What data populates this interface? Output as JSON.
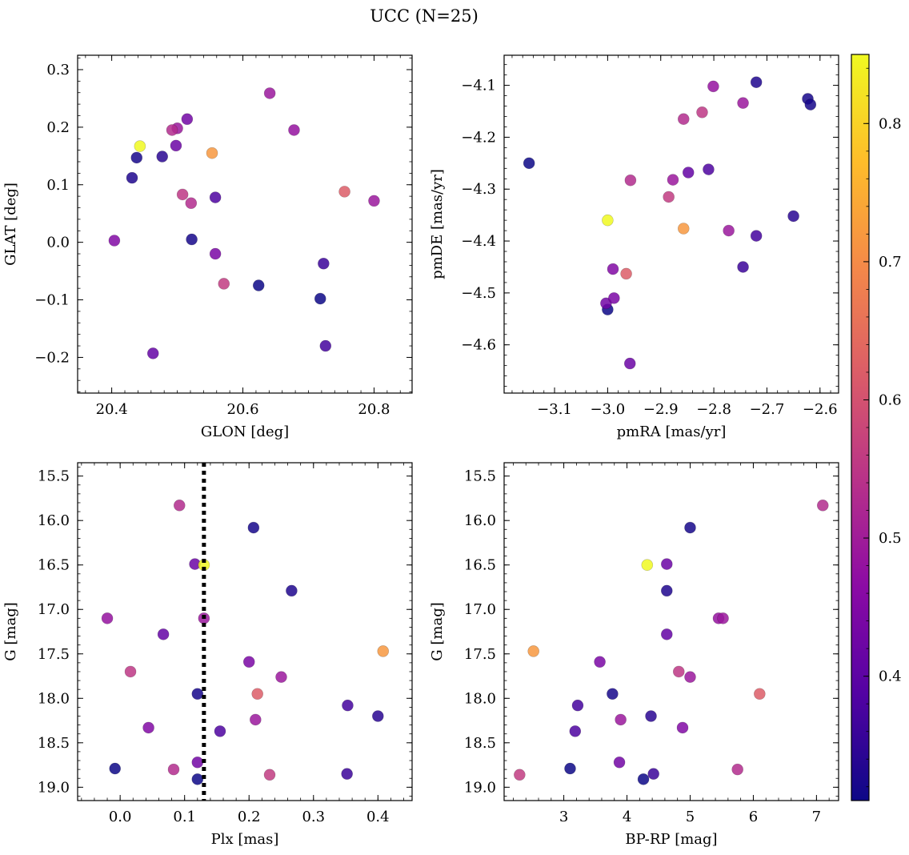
{
  "chart_data": {
    "title": "UCC (N=25)",
    "type": "scatter",
    "colorbar": {
      "colormap": "plasma",
      "range": [
        0.31,
        0.85
      ],
      "ticks": [
        0.4,
        0.5,
        0.6,
        0.7,
        0.8
      ],
      "tick_labels": [
        "0.4",
        "0.5",
        "0.6",
        "0.7",
        "0.8"
      ]
    },
    "points": [
      {
        "glon": 20.443,
        "glat": 0.167,
        "pmra": -3.0,
        "pmde": -4.36,
        "plx": 0.13,
        "g": 16.5,
        "bprp": 4.32,
        "c": 0.85
      },
      {
        "glon": 20.553,
        "glat": 0.155,
        "pmra": -2.857,
        "pmde": -4.376,
        "plx": 0.408,
        "g": 17.47,
        "bprp": 2.52,
        "c": 0.72
      },
      {
        "glon": 20.755,
        "glat": 0.088,
        "pmra": -2.965,
        "pmde": -4.463,
        "plx": 0.213,
        "g": 17.95,
        "bprp": 6.1,
        "c": 0.62
      },
      {
        "glon": 20.492,
        "glat": 0.195,
        "pmra": -2.957,
        "pmde": -4.283,
        "plx": 0.092,
        "g": 15.83,
        "bprp": 7.1,
        "c": 0.53
      },
      {
        "glon": 20.571,
        "glat": -0.072,
        "pmra": -2.885,
        "pmde": -4.315,
        "plx": 0.232,
        "g": 18.86,
        "bprp": 2.3,
        "c": 0.56
      },
      {
        "glon": 20.508,
        "glat": 0.083,
        "pmra": -2.822,
        "pmde": -4.152,
        "plx": 0.016,
        "g": 17.7,
        "bprp": 4.82,
        "c": 0.55
      },
      {
        "glon": 20.521,
        "glat": 0.068,
        "pmra": -2.857,
        "pmde": -4.165,
        "plx": 0.083,
        "g": 18.8,
        "bprp": 5.75,
        "c": 0.53
      },
      {
        "glon": 20.641,
        "glat": 0.259,
        "pmra": -2.745,
        "pmde": -4.134,
        "plx": 0.13,
        "g": 17.1,
        "bprp": 5.52,
        "c": 0.49
      },
      {
        "glon": 20.678,
        "glat": 0.195,
        "pmra": -2.801,
        "pmde": -4.102,
        "plx": -0.02,
        "g": 17.1,
        "bprp": 5.45,
        "c": 0.48
      },
      {
        "glon": 20.5,
        "glat": 0.198,
        "pmra": -2.877,
        "pmde": -4.282,
        "plx": 0.21,
        "g": 18.24,
        "bprp": 3.9,
        "c": 0.49
      },
      {
        "glon": 20.8,
        "glat": 0.072,
        "pmra": -2.772,
        "pmde": -4.38,
        "plx": 0.25,
        "g": 17.76,
        "bprp": 5.0,
        "c": 0.49
      },
      {
        "glon": 20.404,
        "glat": 0.003,
        "pmra": -2.99,
        "pmde": -4.454,
        "plx": 0.044,
        "g": 18.33,
        "bprp": 4.88,
        "c": 0.45
      },
      {
        "glon": 20.558,
        "glat": -0.02,
        "pmra": -2.988,
        "pmde": -4.51,
        "plx": 0.2,
        "g": 17.59,
        "bprp": 3.57,
        "c": 0.44
      },
      {
        "glon": 20.515,
        "glat": 0.214,
        "pmra": -3.003,
        "pmde": -4.52,
        "plx": 0.12,
        "g": 18.72,
        "bprp": 3.88,
        "c": 0.43
      },
      {
        "glon": 20.498,
        "glat": 0.168,
        "pmra": -2.958,
        "pmde": -4.636,
        "plx": 0.116,
        "g": 16.49,
        "bprp": 4.63,
        "c": 0.42
      },
      {
        "glon": 20.463,
        "glat": -0.193,
        "pmra": -2.848,
        "pmde": -4.268,
        "plx": 0.067,
        "g": 17.28,
        "bprp": 4.63,
        "c": 0.41
      },
      {
        "glon": 20.558,
        "glat": 0.078,
        "pmra": -2.81,
        "pmde": -4.262,
        "plx": 0.155,
        "g": 18.37,
        "bprp": 3.18,
        "c": 0.38
      },
      {
        "glon": 20.726,
        "glat": -0.18,
        "pmra": -2.72,
        "pmde": -4.39,
        "plx": 0.353,
        "g": 18.08,
        "bprp": 3.22,
        "c": 0.37
      },
      {
        "glon": 20.723,
        "glat": -0.037,
        "pmra": -2.745,
        "pmde": -4.45,
        "plx": 0.352,
        "g": 18.85,
        "bprp": 4.42,
        "c": 0.36
      },
      {
        "glon": 20.477,
        "glat": 0.149,
        "pmra": -2.65,
        "pmde": -4.352,
        "plx": 0.4,
        "g": 18.2,
        "bprp": 4.38,
        "c": 0.34
      },
      {
        "glon": 20.431,
        "glat": 0.112,
        "pmra": -2.72,
        "pmde": -4.094,
        "plx": 0.266,
        "g": 16.79,
        "bprp": 4.63,
        "c": 0.33
      },
      {
        "glon": 20.438,
        "glat": 0.147,
        "pmra": -2.623,
        "pmde": -4.126,
        "plx": 0.207,
        "g": 16.08,
        "bprp": 5.0,
        "c": 0.32
      },
      {
        "glon": 20.522,
        "glat": 0.005,
        "pmra": -2.618,
        "pmde": -4.137,
        "plx": 0.12,
        "g": 17.95,
        "bprp": 3.77,
        "c": 0.32
      },
      {
        "glon": 20.624,
        "glat": -0.075,
        "pmra": -3.148,
        "pmde": -4.25,
        "plx": -0.008,
        "g": 18.79,
        "bprp": 3.1,
        "c": 0.31
      },
      {
        "glon": 20.718,
        "glat": -0.098,
        "pmra": -3.0,
        "pmde": -4.532,
        "plx": 0.12,
        "g": 18.91,
        "bprp": 4.26,
        "c": 0.31
      }
    ],
    "panels": [
      {
        "id": "sky",
        "type": "scatter",
        "x_field": "glon",
        "y_field": "glat",
        "xlabel": "GLON [deg]",
        "ylabel": "GLAT [deg]",
        "xlim": [
          20.348,
          20.858
        ],
        "ylim": [
          -0.262,
          0.325
        ],
        "invert_y": false,
        "xticks": [
          20.4,
          20.6,
          20.8
        ],
        "xtick_labels": [
          "20.4",
          "20.6",
          "20.8"
        ],
        "yticks": [
          -0.2,
          -0.1,
          0.0,
          0.1,
          0.2,
          0.3
        ],
        "ytick_labels": [
          "−0.2",
          "−0.1",
          "0.0",
          "0.1",
          "0.2",
          "0.3"
        ],
        "xminor": 0.02,
        "yminor": 0.02
      },
      {
        "id": "pm",
        "type": "scatter",
        "x_field": "pmra",
        "y_field": "pmde",
        "xlabel": "pmRA [mas/yr]",
        "ylabel": "pmDE [mas/yr]",
        "xlim": [
          -3.195,
          -2.565
        ],
        "ylim": [
          -4.693,
          -4.042
        ],
        "invert_y": false,
        "xticks": [
          -3.1,
          -3.0,
          -2.9,
          -2.8,
          -2.7,
          -2.6
        ],
        "xtick_labels": [
          "−3.1",
          "−3.0",
          "−2.9",
          "−2.8",
          "−2.7",
          "−2.6"
        ],
        "yticks": [
          -4.6,
          -4.5,
          -4.4,
          -4.3,
          -4.2,
          -4.1
        ],
        "ytick_labels": [
          "−4.6",
          "−4.5",
          "−4.4",
          "−4.3",
          "−4.2",
          "−4.1"
        ],
        "xminor": 0.02,
        "yminor": 0.02
      },
      {
        "id": "plx",
        "type": "scatter",
        "x_field": "plx",
        "y_field": "g",
        "xlabel": "Plx [mas]",
        "ylabel": "G [mag]",
        "xlim": [
          -0.066,
          0.453
        ],
        "ylim": [
          19.15,
          15.35
        ],
        "invert_y": true,
        "vline": 0.13,
        "xticks": [
          0.0,
          0.1,
          0.2,
          0.3,
          0.4
        ],
        "xtick_labels": [
          "0.0",
          "0.1",
          "0.2",
          "0.3",
          "0.4"
        ],
        "yticks": [
          15.5,
          16.0,
          16.5,
          17.0,
          17.5,
          18.0,
          18.5,
          19.0
        ],
        "ytick_labels": [
          "15.5",
          "16.0",
          "16.5",
          "17.0",
          "17.5",
          "18.0",
          "18.5",
          "19.0"
        ],
        "xminor": 0.02,
        "yminor": 0.1
      },
      {
        "id": "cmd",
        "type": "scatter",
        "x_field": "bprp",
        "y_field": "g",
        "xlabel": "BP-RP [mag]",
        "ylabel": "G [mag]",
        "xlim": [
          2.055,
          7.35
        ],
        "ylim": [
          19.15,
          15.35
        ],
        "invert_y": true,
        "xticks": [
          3,
          4,
          5,
          6,
          7
        ],
        "xtick_labels": [
          "3",
          "4",
          "5",
          "6",
          "7"
        ],
        "yticks": [
          15.5,
          16.0,
          16.5,
          17.0,
          17.5,
          18.0,
          18.5,
          19.0
        ],
        "ytick_labels": [
          "15.5",
          "16.0",
          "16.5",
          "17.0",
          "17.5",
          "18.0",
          "18.5",
          "19.0"
        ],
        "xminor": 0.2,
        "yminor": 0.1
      }
    ]
  }
}
